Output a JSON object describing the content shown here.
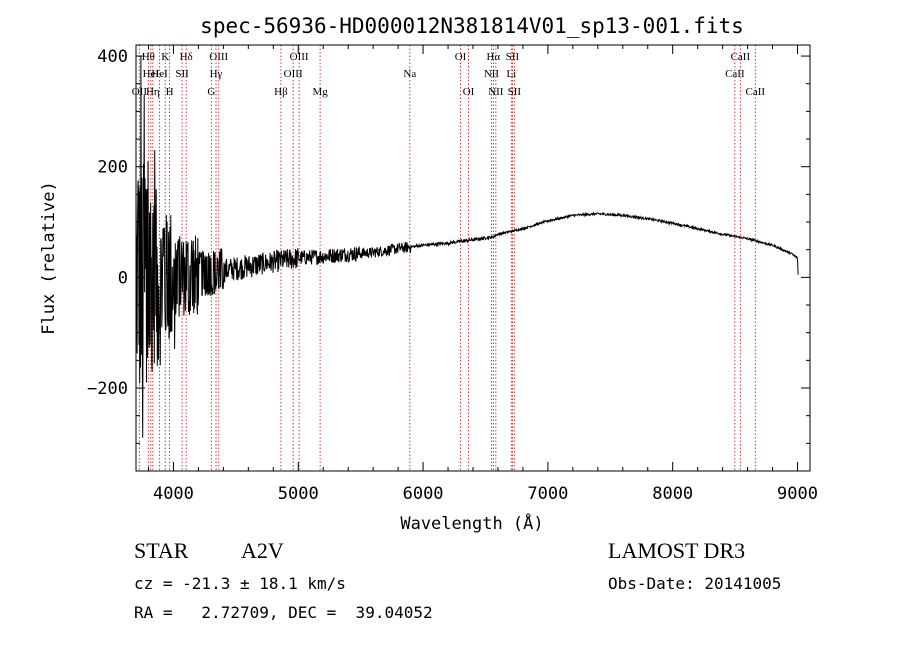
{
  "chart_data": {
    "type": "line",
    "title": "spec-56936-HD000012N381814V01_sp13-001.fits",
    "xlabel": "Wavelength (Å)",
    "ylabel": "Flux (relative)",
    "xlim": [
      3700,
      9100
    ],
    "ylim": [
      -350,
      420
    ],
    "xticks": [
      4000,
      5000,
      6000,
      7000,
      8000,
      9000
    ],
    "yticks": [
      -200,
      0,
      200,
      400
    ],
    "grid": false,
    "series": [
      {
        "name": "flux",
        "x": [
          3700,
          3800,
          4000,
          4200,
          4400,
          4600,
          4800,
          5000,
          5200,
          5400,
          5600,
          5800,
          5900,
          6000,
          6200,
          6400,
          6560,
          6600,
          6800,
          7000,
          7200,
          7400,
          7600,
          7800,
          8000,
          8200,
          8400,
          8500,
          8600,
          8800,
          8950,
          9000,
          9005
        ],
        "y": [
          0,
          0,
          0,
          5,
          12,
          20,
          28,
          35,
          38,
          42,
          45,
          52,
          55,
          58,
          62,
          68,
          73,
          78,
          88,
          102,
          112,
          115,
          112,
          106,
          98,
          88,
          78,
          74,
          70,
          58,
          43,
          35,
          5
        ]
      }
    ],
    "noise": [
      {
        "x0": 3700,
        "x1": 3800,
        "amp": 210
      },
      {
        "x0": 3800,
        "x1": 3900,
        "amp": 160
      },
      {
        "x0": 3900,
        "x1": 4000,
        "amp": 120
      },
      {
        "x0": 4000,
        "x1": 4200,
        "amp": 75
      },
      {
        "x0": 4200,
        "x1": 4400,
        "amp": 42
      },
      {
        "x0": 4400,
        "x1": 4700,
        "amp": 22
      },
      {
        "x0": 4700,
        "x1": 5000,
        "amp": 20
      },
      {
        "x0": 5000,
        "x1": 5500,
        "amp": 14
      },
      {
        "x0": 5500,
        "x1": 5900,
        "amp": 10
      },
      {
        "x0": 5900,
        "x1": 6500,
        "amp": 3
      },
      {
        "x0": 6500,
        "x1": 9005,
        "amp": 2
      }
    ],
    "spikes": [
      {
        "x": 3740,
        "y": 400
      },
      {
        "x": 3755,
        "y": -290
      },
      {
        "x": 3765,
        "y": 330
      },
      {
        "x": 3785,
        "y": -190
      },
      {
        "x": 3795,
        "y": 210
      },
      {
        "x": 3830,
        "y": -170
      },
      {
        "x": 3850,
        "y": 230
      },
      {
        "x": 3870,
        "y": -160
      },
      {
        "x": 4010,
        "y": -130
      }
    ],
    "lines": [
      {
        "x": 3727,
        "label": "OII",
        "row": 2
      },
      {
        "x": 3799,
        "label": "Hθ",
        "row": 0
      },
      {
        "x": 3819,
        "label": "HeI",
        "row": 1
      },
      {
        "x": 3835,
        "label": "Hη",
        "row": 2
      },
      {
        "x": 3889,
        "label": "HeI",
        "row": 1
      },
      {
        "x": 3934,
        "label": "K",
        "row": 0
      },
      {
        "x": 3969,
        "label": "H",
        "row": 2
      },
      {
        "x": 4069,
        "label": "SII",
        "row": 1
      },
      {
        "x": 4102,
        "label": "Hδ",
        "row": 0
      },
      {
        "x": 4304,
        "label": "G",
        "row": 2
      },
      {
        "x": 4341,
        "label": "Hγ",
        "row": 1
      },
      {
        "x": 4363,
        "label": "OIII",
        "row": 0
      },
      {
        "x": 4861,
        "label": "Hβ",
        "row": 2
      },
      {
        "x": 4959,
        "label": "OIII",
        "row": 1
      },
      {
        "x": 5007,
        "label": "OIII",
        "row": 0
      },
      {
        "x": 5175,
        "label": "Mg",
        "row": 2
      },
      {
        "x": 5894,
        "label": "Na",
        "row": 1
      },
      {
        "x": 6300,
        "label": "OI",
        "row": 0
      },
      {
        "x": 6364,
        "label": "OI",
        "row": 2
      },
      {
        "x": 6548,
        "label": "NII",
        "row": 1
      },
      {
        "x": 6563,
        "label": "Hα",
        "row": 0
      },
      {
        "x": 6583,
        "label": "NII",
        "row": 2
      },
      {
        "x": 6707,
        "label": "Li",
        "row": 1
      },
      {
        "x": 6716,
        "label": "SII",
        "row": 0
      },
      {
        "x": 6731,
        "label": "SII",
        "row": 2
      },
      {
        "x": 8498,
        "label": "CaII",
        "row": 1
      },
      {
        "x": 8542,
        "label": "CaII",
        "row": 0
      },
      {
        "x": 8662,
        "label": "CaII",
        "row": 2
      }
    ]
  },
  "info": {
    "class": "STAR",
    "subclass": "A2V",
    "survey": "LAMOST DR3",
    "cz": "cz = -21.3 ± 18.1 km/s",
    "obs_date": "Obs-Date: 20141005",
    "radec": "RA =   2.72709, DEC =  39.04052"
  }
}
